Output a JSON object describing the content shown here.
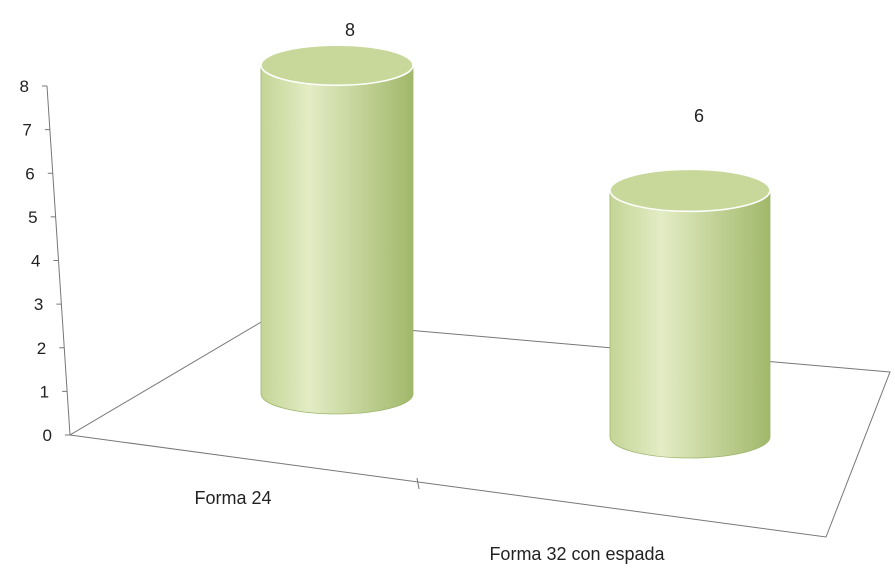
{
  "chart_data": {
    "type": "bar",
    "bar_shape": "cylinder-3d",
    "categories": [
      "Forma 24",
      "Forma 32 con espada"
    ],
    "values": [
      8,
      6
    ],
    "data_labels": [
      "8",
      "6"
    ],
    "ylim": [
      0,
      8
    ],
    "yticks": [
      "0",
      "1",
      "2",
      "3",
      "4",
      "5",
      "6",
      "7",
      "8"
    ],
    "grid": false,
    "legend": "none",
    "title": "",
    "xlabel": "",
    "ylabel": "",
    "colors": {
      "bar_light": "#e3ecc4",
      "bar_mid": "#c4d596",
      "bar_dark": "#a1b86a",
      "bar_top": "#c8d89a",
      "axis": "#777777",
      "text": "#222222"
    }
  }
}
